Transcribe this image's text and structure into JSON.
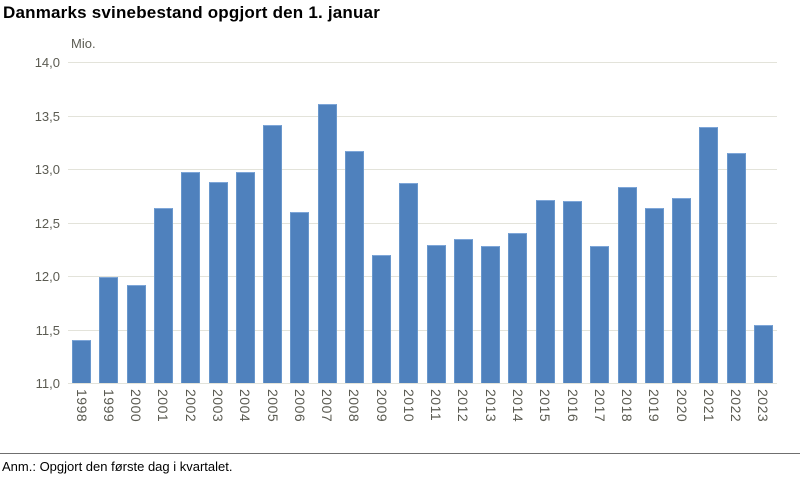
{
  "header": {
    "title": "Danmarks svinebestand opgjort den 1. januar"
  },
  "footnote": {
    "text": "Anm.: Opgjort den første dag i kvartalet."
  },
  "colors": {
    "bar_fill": "#4f81bd",
    "bar_edge": "#7ea6d8",
    "gridline": "#e3e3da",
    "tick_label": "#5b5b52",
    "divider": "#6f6f6f",
    "title_text": "#000000"
  },
  "chart_data": {
    "type": "bar",
    "title": "Danmarks svinebestand opgjort den 1. januar",
    "unit_label": "Mio.",
    "xlabel": "",
    "ylabel": "Mio.",
    "categories": [
      "1998",
      "1999",
      "2000",
      "2001",
      "2002",
      "2003",
      "2004",
      "2005",
      "2006",
      "2007",
      "2008",
      "2009",
      "2010",
      "2011",
      "2012",
      "2013",
      "2014",
      "2015",
      "2016",
      "2017",
      "2018",
      "2019",
      "2020",
      "2021",
      "2022",
      "2023"
    ],
    "values": [
      11.4,
      11.99,
      11.92,
      12.64,
      12.97,
      12.88,
      12.97,
      13.41,
      12.6,
      13.61,
      13.17,
      12.2,
      12.87,
      12.29,
      12.35,
      12.28,
      12.4,
      12.71,
      12.7,
      12.28,
      12.83,
      12.64,
      12.73,
      13.39,
      13.15,
      11.54
    ],
    "ylim": [
      11.0,
      14.0
    ],
    "ytick_values": [
      14.0,
      13.5,
      13.0,
      12.5,
      12.0,
      11.5,
      11.0
    ],
    "ytick_labels": [
      "14,0",
      "13,5",
      "13,0",
      "12,5",
      "12,0",
      "11,5",
      "11,0"
    ],
    "grid": true,
    "legend_position": "none",
    "x_labels_rotated_90deg": true
  }
}
